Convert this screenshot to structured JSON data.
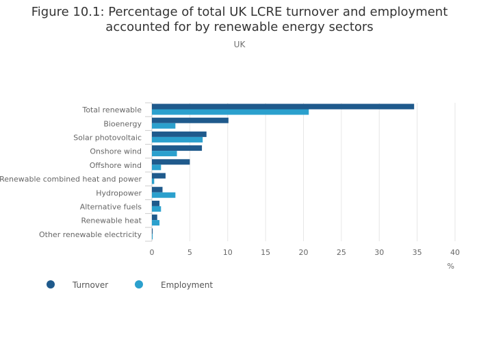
{
  "header": {
    "title_line1": "Figure 10.1: Percentage of total UK LCRE turnover and employment",
    "title_line2": "accounted for by renewable energy sectors",
    "subtitle": "UK"
  },
  "chart_data": {
    "type": "bar",
    "orientation": "horizontal",
    "categories": [
      "Total renewable",
      "Bioenergy",
      "Solar photovoltaic",
      "Onshore wind",
      "Offshore wind",
      "Renewable combined heat and power",
      "Hydropower",
      "Alternative fuels",
      "Renewable heat",
      "Other renewable electricity"
    ],
    "series": [
      {
        "name": "Turnover",
        "color": "#1f5a8c",
        "values": [
          34.6,
          10.1,
          7.2,
          6.6,
          5.0,
          1.8,
          1.4,
          1.0,
          0.7,
          0.1
        ]
      },
      {
        "name": "Employment",
        "color": "#2ba0cd",
        "values": [
          20.7,
          3.1,
          6.7,
          3.3,
          1.2,
          0.3,
          3.1,
          1.2,
          1.0,
          0.1
        ]
      }
    ],
    "xticks": [
      "0",
      "5",
      "10",
      "15",
      "20",
      "25",
      "30",
      "35",
      "40"
    ],
    "xlim": [
      0,
      40
    ],
    "xlabel": "%",
    "grid": true,
    "legend_position": "bottom-left"
  }
}
